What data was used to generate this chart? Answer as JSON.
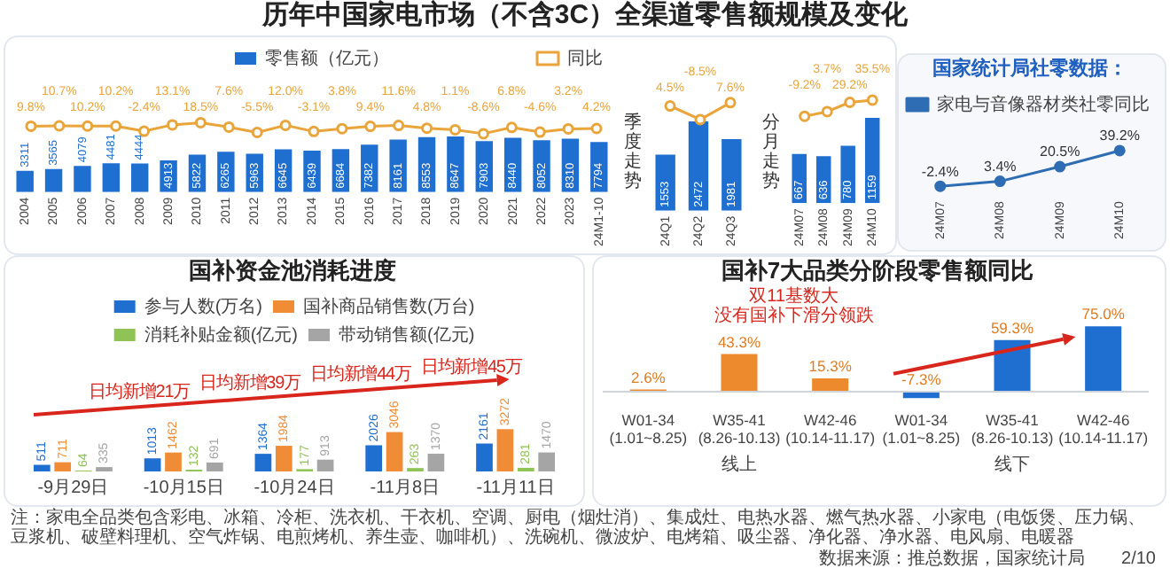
{
  "chart_data": [
    {
      "type": "bar",
      "annotations": [
        "历年中国家电市场（不含3C）全渠道零售额规模及变化"
      ],
      "categories": [
        "2004",
        "2005",
        "2006",
        "2007",
        "2008",
        "2009",
        "2010",
        "2011",
        "2012",
        "2013",
        "2014",
        "2015",
        "2016",
        "2017",
        "2018",
        "2019",
        "2020",
        "2021",
        "2022",
        "2023",
        "24M1-10"
      ],
      "series": [
        {
          "name": "零售额（亿元）",
          "color": "#1f6fd1",
          "values": [
            3311,
            3565,
            4079,
            4481,
            4444,
            4913,
            5822,
            6265,
            5963,
            6645,
            6439,
            6684,
            7382,
            8161,
            8553,
            8647,
            7903,
            8440,
            8052,
            8310,
            7794
          ]
        }
      ],
      "data_labels": true,
      "legend": "top"
    },
    {
      "type": "line",
      "categories": [
        null,
        null,
        null,
        null,
        null,
        null,
        null,
        null,
        null,
        null,
        null,
        null,
        null,
        null,
        null,
        null,
        null,
        null,
        null,
        null,
        null
      ],
      "series": [
        {
          "name": "同比",
          "color": "#e9a43a",
          "values": [
            9.8,
            10.7,
            10.2,
            10.2,
            -2.4,
            13.1,
            18.5,
            7.6,
            -5.5,
            12.0,
            -3.1,
            3.8,
            9.4,
            11.6,
            4.8,
            1.1,
            -8.6,
            6.8,
            -4.6,
            3.2,
            4.2
          ],
          "value_labels": [
            "9.8%",
            "10.7%",
            "10.2%",
            "10.2%",
            "-2.4%",
            "13.1%",
            "18.5%",
            "7.6%",
            "-5.5%",
            "12.0%",
            "-3.1%",
            "3.8%",
            "9.4%",
            "11.6%",
            "4.8%",
            "1.1%",
            "-8.6%",
            "6.8%",
            "-4.6%",
            "3.2%",
            "4.2%"
          ]
        }
      ],
      "legend": "top right",
      "marker": "circle",
      "tick_labels": false
    },
    {
      "type": "bar",
      "categories": [
        "24Q1",
        "24Q2",
        "24Q3"
      ],
      "series": [
        {
          "color": "#1f6fd1",
          "values": [
            1553,
            2472,
            1981
          ]
        }
      ],
      "data_labels": true,
      "annotations": [
        "季度走势"
      ]
    },
    {
      "type": "line",
      "categories": [
        null,
        null,
        null
      ],
      "series": [
        {
          "color": "#e9a43a",
          "values": [
            4.5,
            -8.5,
            7.6
          ],
          "value_labels": [
            "4.5%",
            "-8.5%",
            "7.6%"
          ]
        }
      ],
      "marker": "circle",
      "tick_labels": false
    },
    {
      "type": "bar",
      "categories": [
        "24M07",
        "24M08",
        "24M09",
        "24M10"
      ],
      "series": [
        {
          "color": "#1f6fd1",
          "values": [
            667,
            636,
            780,
            1159
          ]
        }
      ],
      "data_labels": true,
      "annotations": [
        "分月走势"
      ]
    },
    {
      "type": "line",
      "categories": [
        null,
        null,
        null,
        null
      ],
      "series": [
        {
          "color": "#e9a43a",
          "values": [
            -9.2,
            3.7,
            29.2,
            35.5
          ],
          "value_labels": [
            "-9.2%",
            "3.7%",
            "29.2%",
            "35.5%"
          ]
        }
      ],
      "marker": "circle",
      "tick_labels": false
    },
    {
      "type": "line",
      "title": "国家统计局社零数据：",
      "categories": [
        "24M07",
        "24M08",
        "24M09",
        "24M10"
      ],
      "series": [
        {
          "name": "家电与音像器材类社零同比",
          "color": "#2e6db4",
          "values": [
            -2.4,
            3.4,
            20.5,
            39.2
          ],
          "value_labels": [
            "-2.4%",
            "3.4%",
            "20.5%",
            "39.2%"
          ]
        }
      ],
      "legend": "top",
      "marker": "circle"
    },
    {
      "type": "bar",
      "title": "国补资金池消耗进度",
      "categories": [
        "-9月29日",
        "-10月15日",
        "-10月24日",
        "-11月8日",
        "-11月11日"
      ],
      "series": [
        {
          "name": "参与人数(万名)",
          "color": "#1f6fd1",
          "values": [
            511,
            1013,
            1364,
            2026,
            2161
          ]
        },
        {
          "name": "国补商品销售数(万台)",
          "color": "#f08c35",
          "values": [
            711,
            1462,
            1984,
            3046,
            3272
          ]
        },
        {
          "name": "消耗补贴金额(亿元)",
          "color": "#8fc356",
          "values": [
            64,
            132,
            177,
            263,
            281
          ]
        },
        {
          "name": "带动销售额(亿元)",
          "color": "#a5a5a5",
          "values": [
            335,
            691,
            913,
            1370,
            1470
          ]
        }
      ],
      "data_labels": true,
      "legend": "top",
      "annotations": [
        "日均新增21万",
        "日均新增39万",
        "日均新增44万",
        "日均新增45万",
        "注：家电全品类包含彩电、冰箱、冷柜、洗衣机、干衣机、空调、厨电（烟灶消）、集成灶、电热水器、燃气热水器、小家电（电饭煲、压力锅、豆浆机、破壁料理机、空气炸锅、电煎烤机、养生壶、咖啡机）、洗碗机、微波炉、电烤箱、吸尘器、净化器、净水器、电风扇、电暖器"
      ]
    },
    {
      "type": "bar",
      "title": "国补7大品类分阶段零售额同比",
      "categories": [
        "W01-34\n(1.01~8.25)",
        "W35-41\n(8.26-10.13)",
        "W42-46\n(10.14-11.17)",
        "W01-34\n(1.01~8.25)",
        "W35-41\n(8.26-10.13)",
        "W42-46\n(10.14-11.17)"
      ],
      "values": [
        2.6,
        43.3,
        15.3,
        -7.3,
        59.3,
        75.0
      ],
      "colors": [
        "#ee8a2e",
        "#ee8a2e",
        "#ee8a2e",
        "#1f6fd1",
        "#1f6fd1",
        "#1f6fd1"
      ],
      "value_labels": [
        "2.6%",
        "43.3%",
        "15.3%",
        "-7.3%",
        "59.3%",
        "75.0%"
      ],
      "annotations": [
        "双11基数大",
        "没有国补下滑分领跌",
        "线上",
        "线下",
        "数据来源：推总数据，国家统计局",
        "2/10"
      ]
    }
  ]
}
